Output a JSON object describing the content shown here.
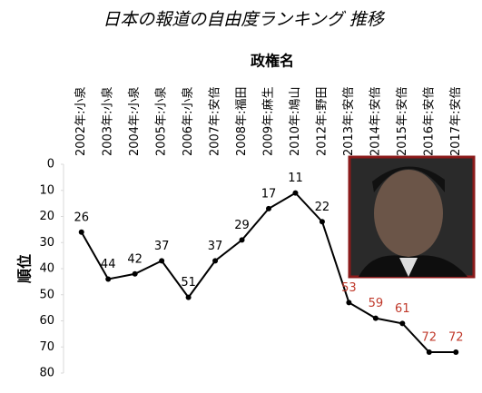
{
  "chart_data": {
    "type": "line",
    "title": "日本の報道の自由度ランキング 推移",
    "x_label": "政権名",
    "y_label": "順位",
    "categories": [
      "2002年:小泉",
      "2003年:小泉",
      "2004年:小泉",
      "2005年:小泉",
      "2006年:小泉",
      "2007年:安倍",
      "2008年:福田",
      "2009年:麻生",
      "2010年:鳩山",
      "2012年:野田",
      "2013年:安倍",
      "2014年:安倍",
      "2015年:安倍",
      "2016年:安倍",
      "2017年:安倍"
    ],
    "series": [
      {
        "name": "順位",
        "color": "#000000",
        "values": [
          26,
          44,
          42,
          37,
          51,
          37,
          29,
          17,
          11,
          22,
          53,
          59,
          61,
          72,
          72
        ],
        "value_label_colors": [
          "#000000",
          "#000000",
          "#000000",
          "#000000",
          "#000000",
          "#000000",
          "#000000",
          "#000000",
          "#000000",
          "#000000",
          "#c0392b",
          "#c0392b",
          "#c0392b",
          "#c0392b",
          "#c0392b"
        ]
      }
    ],
    "ylim": [
      0,
      80
    ],
    "yticks": [
      0,
      10,
      20,
      30,
      40,
      50,
      60,
      70,
      80
    ],
    "y_inverted": true,
    "grid": false
  }
}
